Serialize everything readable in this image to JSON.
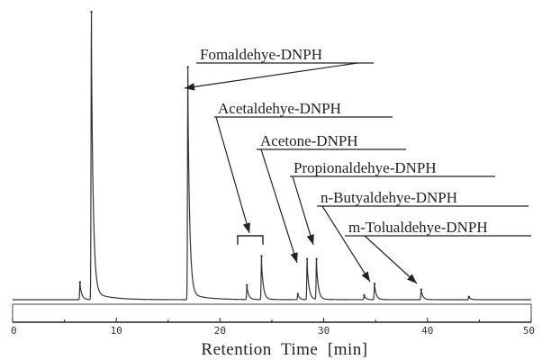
{
  "chart_data": {
    "type": "line",
    "xlabel": "Retention  Time  [min]",
    "ylabel": "",
    "title": "",
    "xlim": [
      0,
      50
    ],
    "x_ticks": [
      {
        "value": 0,
        "label": "0"
      },
      {
        "value": 10,
        "label": "10"
      },
      {
        "value": 20,
        "label": "20"
      },
      {
        "value": 30,
        "label": "30"
      },
      {
        "value": 40,
        "label": "40"
      },
      {
        "value": 50,
        "label": "50"
      }
    ],
    "grid": false,
    "peaks": [
      {
        "rt": 6.5,
        "height": 0.06
      },
      {
        "rt": 7.6,
        "height": 0.99
      },
      {
        "rt": 16.9,
        "height": 0.8
      },
      {
        "rt": 22.6,
        "height": 0.05
      },
      {
        "rt": 24.0,
        "height": 0.15
      },
      {
        "rt": 27.5,
        "height": 0.02
      },
      {
        "rt": 28.4,
        "height": 0.14
      },
      {
        "rt": 29.3,
        "height": 0.14
      },
      {
        "rt": 33.9,
        "height": 0.015
      },
      {
        "rt": 34.9,
        "height": 0.055
      },
      {
        "rt": 39.4,
        "height": 0.035
      },
      {
        "rt": 44.0,
        "height": 0.01
      }
    ],
    "annotations": [
      {
        "label": "Fomaldehye-DNPH",
        "peak_rt": 16.9
      },
      {
        "label": "Acetaldehye-DNPH",
        "peak_rt": 23.3
      },
      {
        "label": "Acetone-DNPH",
        "peak_rt": 28.0
      },
      {
        "label": "Propionaldehye-DNPH",
        "peak_rt": 29.0
      },
      {
        "label": "n-Butyaldehye-DNPH",
        "peak_rt": 34.8
      },
      {
        "label": "m-Tolualdehye-DNPH",
        "peak_rt": 39.3
      }
    ]
  }
}
